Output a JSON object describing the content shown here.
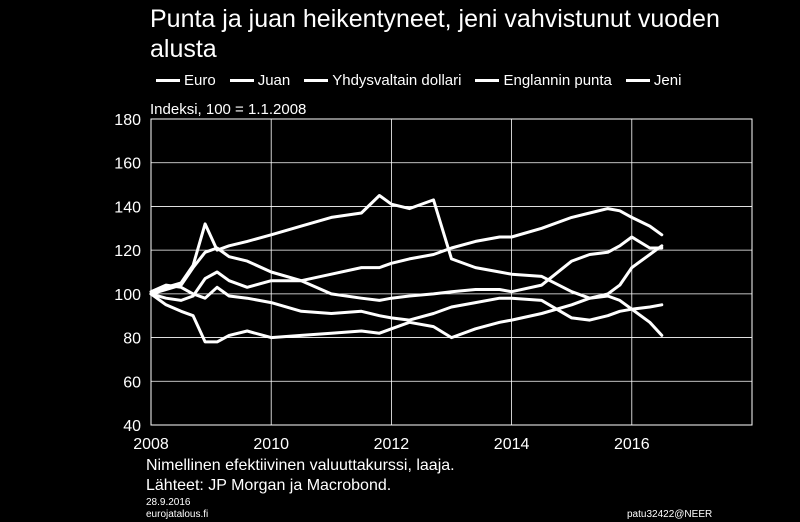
{
  "chart_data": {
    "type": "line",
    "title": "Punta ja juan heikentyneet, jeni vahvistunut vuoden alusta",
    "note": "Indeksi, 100 = 1.1.2008",
    "ylim": [
      40,
      180
    ],
    "yticks": [
      40,
      60,
      80,
      100,
      120,
      140,
      160,
      180
    ],
    "xlim": [
      2008,
      2018
    ],
    "xticks": [
      2008,
      2010,
      2012,
      2014,
      2016
    ],
    "grid": true,
    "legend_position": "top",
    "line_color": "#ffffff",
    "x": [
      2008.0,
      2008.25,
      2008.5,
      2008.7,
      2008.9,
      2009.1,
      2009.3,
      2009.6,
      2010.0,
      2010.5,
      2011.0,
      2011.5,
      2011.8,
      2012.0,
      2012.3,
      2012.7,
      2013.0,
      2013.4,
      2013.8,
      2014.0,
      2014.5,
      2015.0,
      2015.3,
      2015.6,
      2015.8,
      2016.0,
      2016.3,
      2016.5
    ],
    "series": [
      {
        "name": "Euro",
        "values": [
          101,
          104,
          103,
          100,
          98,
          103,
          99,
          98,
          96,
          92,
          91,
          92,
          90,
          89,
          88,
          91,
          94,
          96,
          98,
          98,
          97,
          89,
          88,
          90,
          92,
          93,
          94,
          95
        ]
      },
      {
        "name": "Juan",
        "values": [
          100,
          102,
          104,
          112,
          119,
          121,
          117,
          115,
          110,
          106,
          109,
          112,
          112,
          114,
          116,
          118,
          121,
          124,
          126,
          126,
          130,
          135,
          137,
          139,
          138,
          135,
          131,
          127
        ]
      },
      {
        "name": "Yhdysvaltain dollari",
        "values": [
          100,
          98,
          97,
          99,
          107,
          110,
          106,
          103,
          106,
          106,
          100,
          98,
          97,
          98,
          99,
          100,
          101,
          102,
          102,
          101,
          104,
          115,
          118,
          119,
          122,
          126,
          121,
          121
        ]
      },
      {
        "name": "Englannin punta",
        "values": [
          100,
          95,
          92,
          90,
          78,
          78,
          81,
          83,
          80,
          81,
          82,
          83,
          82,
          84,
          87,
          85,
          80,
          84,
          87,
          88,
          91,
          95,
          98,
          99,
          97,
          93,
          87,
          81
        ]
      },
      {
        "name": "Jeni",
        "values": [
          100,
          103,
          105,
          113,
          132,
          120,
          122,
          124,
          127,
          131,
          135,
          137,
          145,
          141,
          139,
          143,
          116,
          112,
          110,
          109,
          108,
          101,
          98,
          100,
          104,
          112,
          118,
          122
        ]
      }
    ]
  },
  "footer": {
    "source_line1": "Nimellinen efektiivinen valuuttakurssi, laaja.",
    "source_line2": "Lähteet: JP Morgan ja Macrobond.",
    "date": "28.9.2016",
    "site": "eurojatalous.fi",
    "code": "patu32422@NEER"
  }
}
